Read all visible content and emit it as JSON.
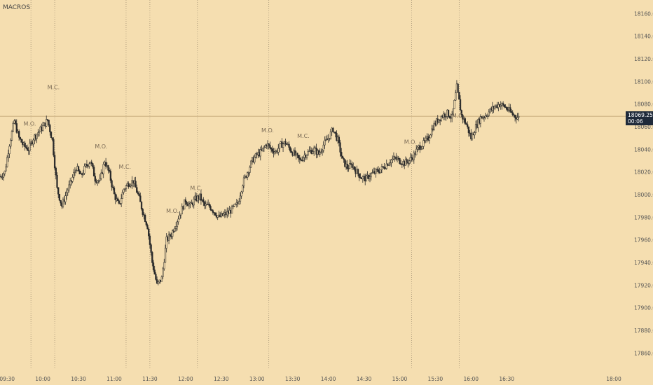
{
  "header": {
    "title": "MACROS"
  },
  "price_box": {
    "price": "18069.25",
    "countdown": "00:06"
  },
  "colors": {
    "background": "#f5deb0",
    "candle": "#2b2b2b",
    "session_line": "#9a8a70"
  },
  "chart_data": {
    "type": "candlestick",
    "title": "MACROS",
    "xlabel": "",
    "ylabel": "",
    "ylim": [
      17846,
      18172
    ],
    "xlim": [
      "09:24",
      "18:10"
    ],
    "y_ticks": [
      "18160.00",
      "18140.00",
      "18120.00",
      "18100.00",
      "18080.00",
      "18060.00",
      "18040.00",
      "18020.00",
      "18000.00",
      "17980.00",
      "17960.00",
      "17940.00",
      "17920.00",
      "17900.00",
      "17880.00",
      "17860.00"
    ],
    "x_ticks": [
      "09:30",
      "10:00",
      "10:30",
      "11:00",
      "11:30",
      "12:00",
      "12:30",
      "13:00",
      "13:30",
      "14:00",
      "14:30",
      "15:00",
      "15:30",
      "16:00",
      "16:30",
      "18:00"
    ],
    "current_price": 18069.25,
    "session_lines": [
      "09:50",
      "10:10",
      "11:10",
      "11:30",
      "12:10",
      "13:10",
      "15:10",
      "15:50"
    ],
    "annotations": [
      {
        "text": "M.O.",
        "time": "09:49",
        "price": 18061
      },
      {
        "text": "M.C.",
        "time": "10:09",
        "price": 18093
      },
      {
        "text": "M.O.",
        "time": "10:49",
        "price": 18041
      },
      {
        "text": "M.C.",
        "time": "11:09",
        "price": 18023
      },
      {
        "text": "M.O.",
        "time": "11:49",
        "price": 17984
      },
      {
        "text": "M.C.",
        "time": "12:09",
        "price": 18004
      },
      {
        "text": "M.O.",
        "time": "13:09",
        "price": 18055
      },
      {
        "text": "M.C.",
        "time": "13:39",
        "price": 18050
      },
      {
        "text": "M.O.",
        "time": "15:09",
        "price": 18045
      },
      {
        "text": "M.C.",
        "time": "15:49",
        "price": 18068
      }
    ],
    "close_path": [
      [
        "09:24",
        18016
      ],
      [
        "09:28",
        18020
      ],
      [
        "09:32",
        18045
      ],
      [
        "09:36",
        18065
      ],
      [
        "09:40",
        18050
      ],
      [
        "09:44",
        18043
      ],
      [
        "09:48",
        18040
      ],
      [
        "09:52",
        18050
      ],
      [
        "09:56",
        18055
      ],
      [
        "10:00",
        18060
      ],
      [
        "10:04",
        18066
      ],
      [
        "10:08",
        18048
      ],
      [
        "10:12",
        18005
      ],
      [
        "10:16",
        17990
      ],
      [
        "10:20",
        18002
      ],
      [
        "10:24",
        18012
      ],
      [
        "10:28",
        18024
      ],
      [
        "10:32",
        18016
      ],
      [
        "10:36",
        18025
      ],
      [
        "10:40",
        18030
      ],
      [
        "10:44",
        18014
      ],
      [
        "10:48",
        18012
      ],
      [
        "10:52",
        18030
      ],
      [
        "10:56",
        18018
      ],
      [
        "11:00",
        18000
      ],
      [
        "11:04",
        17990
      ],
      [
        "11:08",
        18005
      ],
      [
        "11:12",
        18010
      ],
      [
        "11:16",
        18012
      ],
      [
        "11:20",
        18000
      ],
      [
        "11:24",
        17985
      ],
      [
        "11:28",
        17972
      ],
      [
        "11:32",
        17940
      ],
      [
        "11:36",
        17920
      ],
      [
        "11:40",
        17926
      ],
      [
        "11:44",
        17960
      ],
      [
        "11:48",
        17965
      ],
      [
        "11:52",
        17975
      ],
      [
        "11:56",
        17985
      ],
      [
        "12:00",
        17995
      ],
      [
        "12:04",
        17990
      ],
      [
        "12:08",
        17996
      ],
      [
        "12:12",
        17998
      ],
      [
        "12:16",
        17990
      ],
      [
        "12:20",
        17990
      ],
      [
        "12:24",
        17985
      ],
      [
        "12:28",
        17980
      ],
      [
        "12:32",
        17982
      ],
      [
        "12:36",
        17984
      ],
      [
        "12:40",
        17988
      ],
      [
        "12:44",
        17992
      ],
      [
        "12:48",
        18010
      ],
      [
        "12:52",
        18020
      ],
      [
        "12:56",
        18030
      ],
      [
        "13:00",
        18035
      ],
      [
        "13:04",
        18038
      ],
      [
        "13:08",
        18045
      ],
      [
        "13:12",
        18040
      ],
      [
        "13:16",
        18038
      ],
      [
        "13:20",
        18044
      ],
      [
        "13:24",
        18046
      ],
      [
        "13:28",
        18040
      ],
      [
        "13:32",
        18035
      ],
      [
        "13:36",
        18030
      ],
      [
        "13:40",
        18035
      ],
      [
        "13:44",
        18038
      ],
      [
        "13:48",
        18040
      ],
      [
        "13:52",
        18036
      ],
      [
        "13:56",
        18044
      ],
      [
        "14:00",
        18050
      ],
      [
        "14:04",
        18058
      ],
      [
        "14:08",
        18048
      ],
      [
        "14:12",
        18030
      ],
      [
        "14:16",
        18024
      ],
      [
        "14:20",
        18026
      ],
      [
        "14:24",
        18020
      ],
      [
        "14:28",
        18015
      ],
      [
        "14:32",
        18014
      ],
      [
        "14:36",
        18018
      ],
      [
        "14:40",
        18020
      ],
      [
        "14:44",
        18022
      ],
      [
        "14:48",
        18026
      ],
      [
        "14:52",
        18030
      ],
      [
        "14:56",
        18032
      ],
      [
        "15:00",
        18030
      ],
      [
        "15:04",
        18028
      ],
      [
        "15:08",
        18030
      ],
      [
        "15:12",
        18035
      ],
      [
        "15:16",
        18042
      ],
      [
        "15:20",
        18045
      ],
      [
        "15:24",
        18050
      ],
      [
        "15:28",
        18060
      ],
      [
        "15:32",
        18066
      ],
      [
        "15:36",
        18070
      ],
      [
        "15:40",
        18072
      ],
      [
        "15:44",
        18068
      ],
      [
        "15:48",
        18095
      ],
      [
        "15:52",
        18070
      ],
      [
        "15:56",
        18062
      ],
      [
        "16:00",
        18050
      ],
      [
        "16:04",
        18060
      ],
      [
        "16:08",
        18068
      ],
      [
        "16:12",
        18070
      ],
      [
        "16:16",
        18074
      ],
      [
        "16:20",
        18078
      ],
      [
        "16:24",
        18080
      ],
      [
        "16:28",
        18078
      ],
      [
        "16:32",
        18074
      ],
      [
        "16:36",
        18070
      ],
      [
        "16:40",
        18068
      ]
    ]
  }
}
